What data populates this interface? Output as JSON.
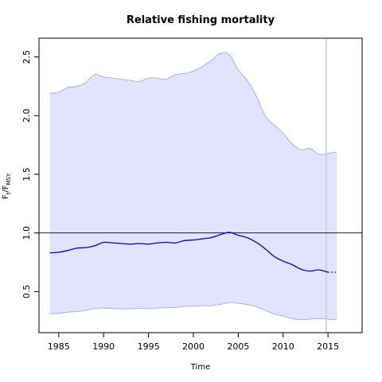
{
  "chart_data": {
    "type": "line",
    "title": "Relative fishing mortality",
    "xlabel": "Time",
    "ylabel": {
      "main": "F",
      "sub1": "t",
      "sep": "/F",
      "sub2": "MSY"
    },
    "xlim": [
      1982.8,
      2018.8
    ],
    "ylim": [
      0.15,
      2.66
    ],
    "x_ticks": [
      1985,
      1990,
      1995,
      2000,
      2005,
      2010,
      2015
    ],
    "y_ticks": [
      0.5,
      1.0,
      1.5,
      2.0,
      2.5
    ],
    "y_tick_labels": [
      "0.5",
      "1.0",
      "1.5",
      "2.0",
      "2.5"
    ],
    "reference_line": 1.0,
    "vertical_marker": 2014.8,
    "colors": {
      "line": "#0000dd",
      "band_fill": "#e3e3ff",
      "band_edge": "#a0a0f0",
      "reference": "#000000",
      "marker": "#cccccc"
    },
    "series": [
      {
        "role": "estimate",
        "x": [
          1984,
          1985,
          1986,
          1987,
          1988,
          1989,
          1990,
          1991,
          1992,
          1993,
          1994,
          1995,
          1996,
          1997,
          1998,
          1999,
          2000,
          2001,
          2002,
          2003,
          2004,
          2005,
          2006,
          2007,
          2008,
          2009,
          2010,
          2011,
          2012,
          2013,
          2014,
          2015
        ],
        "values": [
          0.83,
          0.835,
          0.85,
          0.87,
          0.875,
          0.89,
          0.92,
          0.915,
          0.91,
          0.905,
          0.91,
          0.905,
          0.915,
          0.92,
          0.915,
          0.935,
          0.94,
          0.95,
          0.96,
          0.985,
          1.005,
          0.98,
          0.96,
          0.92,
          0.865,
          0.8,
          0.76,
          0.73,
          0.69,
          0.675,
          0.685,
          0.665
        ]
      },
      {
        "role": "projection",
        "x": [
          2015,
          2016
        ],
        "values": [
          0.665,
          0.665
        ]
      },
      {
        "role": "upper_bound",
        "x": [
          1984,
          1985,
          1986,
          1987,
          1988,
          1989,
          1990,
          1991,
          1992,
          1993,
          1994,
          1995,
          1996,
          1997,
          1998,
          1999,
          2000,
          2001,
          2002,
          2003,
          2004,
          2005,
          2006,
          2007,
          2008,
          2009,
          2010,
          2011,
          2012,
          2013,
          2014,
          2015,
          2016
        ],
        "values": [
          2.19,
          2.2,
          2.24,
          2.25,
          2.28,
          2.35,
          2.33,
          2.32,
          2.31,
          2.3,
          2.29,
          2.32,
          2.32,
          2.31,
          2.35,
          2.36,
          2.38,
          2.42,
          2.47,
          2.53,
          2.52,
          2.39,
          2.3,
          2.17,
          2.0,
          1.92,
          1.85,
          1.76,
          1.71,
          1.72,
          1.67,
          1.68,
          1.69
        ]
      },
      {
        "role": "lower_bound",
        "x": [
          1984,
          1985,
          1986,
          1987,
          1988,
          1989,
          1990,
          1991,
          1992,
          1993,
          1994,
          1995,
          1996,
          1997,
          1998,
          1999,
          2000,
          2001,
          2002,
          2003,
          2004,
          2005,
          2006,
          2007,
          2008,
          2009,
          2010,
          2011,
          2012,
          2013,
          2014,
          2015,
          2016
        ],
        "values": [
          0.31,
          0.315,
          0.325,
          0.33,
          0.34,
          0.355,
          0.36,
          0.355,
          0.352,
          0.354,
          0.356,
          0.355,
          0.36,
          0.362,
          0.365,
          0.375,
          0.375,
          0.38,
          0.38,
          0.39,
          0.405,
          0.4,
          0.39,
          0.37,
          0.34,
          0.31,
          0.29,
          0.27,
          0.26,
          0.265,
          0.27,
          0.265,
          0.26
        ]
      }
    ],
    "grid": false,
    "legend": "none"
  }
}
